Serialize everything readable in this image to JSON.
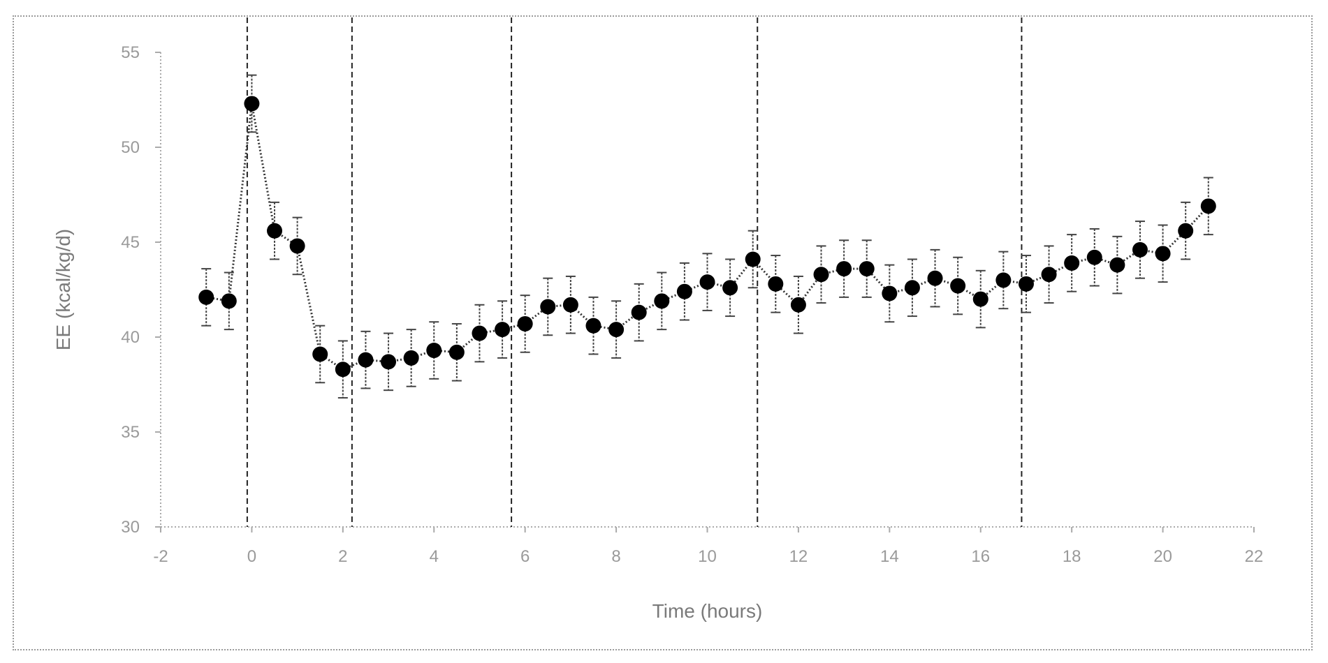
{
  "chart_data": {
    "type": "line",
    "title": "",
    "xlabel": "Time (hours)",
    "ylabel": "EE (kcal/kg/d)",
    "xlim": [
      -2,
      22
    ],
    "ylim": [
      30,
      55
    ],
    "x_ticks": [
      -2,
      0,
      2,
      4,
      6,
      8,
      10,
      12,
      14,
      16,
      18,
      20,
      22
    ],
    "y_ticks": [
      30,
      35,
      40,
      45,
      50,
      55
    ],
    "grid": false,
    "legend": "none",
    "marker": "filled-circle",
    "line_style": "dotted",
    "colors": {
      "marker": "#000000",
      "line": "#333333",
      "error_bar": "#444444",
      "axis": "#aaaaaa",
      "vline": "#222222"
    },
    "vertical_dashed_lines_x": [
      -0.1,
      2.2,
      5.7,
      11.1,
      16.9
    ],
    "series": [
      {
        "x": [
          -1,
          -0.5,
          0,
          0.5,
          1,
          1.5,
          2,
          2.5,
          3,
          3.5,
          4,
          4.5,
          5,
          5.5,
          6,
          6.5,
          7,
          7.5,
          8,
          8.5,
          9,
          9.5,
          10,
          10.5,
          11,
          11.5,
          12,
          12.5,
          13,
          13.5,
          14,
          14.5,
          15,
          15.5,
          16,
          16.5,
          17,
          17.5,
          18,
          18.5,
          19,
          19.5,
          20,
          20.5,
          21
        ],
        "y": [
          42.1,
          41.9,
          52.3,
          45.6,
          44.8,
          39.1,
          38.3,
          38.8,
          38.7,
          38.9,
          39.3,
          39.2,
          40.2,
          40.4,
          40.7,
          41.6,
          41.7,
          40.6,
          40.4,
          41.3,
          41.9,
          42.4,
          42.9,
          42.6,
          44.1,
          42.8,
          41.7,
          43.3,
          43.6,
          43.6,
          42.3,
          42.6,
          43.1,
          42.7,
          42.0,
          43.0,
          42.8,
          43.3,
          43.9,
          44.2,
          43.8,
          44.6,
          44.4,
          45.6,
          46.9
        ],
        "error": [
          1.5,
          1.5,
          1.5,
          1.5,
          1.5,
          1.5,
          1.5,
          1.5,
          1.5,
          1.5,
          1.5,
          1.5,
          1.5,
          1.5,
          1.5,
          1.5,
          1.5,
          1.5,
          1.5,
          1.5,
          1.5,
          1.5,
          1.5,
          1.5,
          1.5,
          1.5,
          1.5,
          1.5,
          1.5,
          1.5,
          1.5,
          1.5,
          1.5,
          1.5,
          1.5,
          1.5,
          1.5,
          1.5,
          1.5,
          1.5,
          1.5,
          1.5,
          1.5,
          1.5,
          1.5
        ]
      }
    ]
  }
}
